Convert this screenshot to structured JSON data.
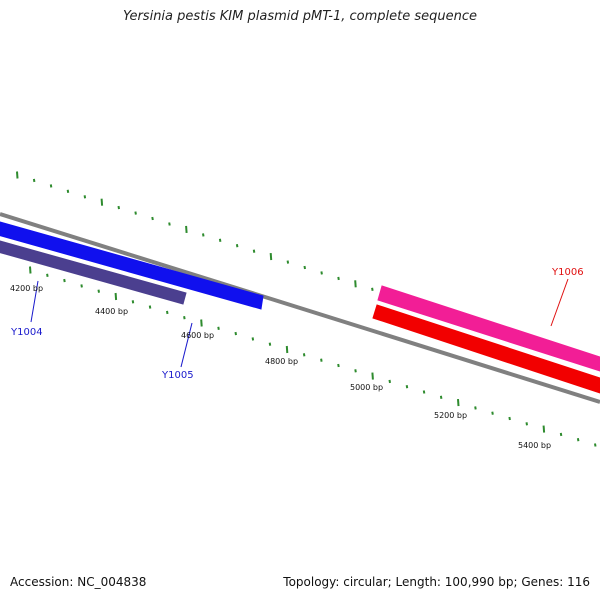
{
  "title": "Yersinia pestis KIM plasmid pMT-1, complete sequence",
  "footer": {
    "accession": "Accession: NC_004838",
    "summary": "Topology: circular; Length: 100,990 bp; Genes: 116"
  },
  "colors": {
    "backbone": "#808080",
    "ticks": "#2e8b2e",
    "Y1004": "#4b3f8f",
    "Y1005": "#1010ee",
    "Y1006_forward": "#f21e96",
    "Y1006_reverse": "#f20000",
    "label_blue": "#1a1acc",
    "label_red": "#e01010"
  },
  "scale_labels": [
    "4200 bp",
    "4400 bp",
    "4600 bp",
    "4800 bp",
    "5000 bp",
    "5200 bp",
    "5400 bp"
  ],
  "genes": [
    {
      "name": "Y1004",
      "color_key": "Y1004",
      "label_color_key": "label_blue"
    },
    {
      "name": "Y1005",
      "color_key": "Y1005",
      "label_color_key": "label_blue"
    },
    {
      "name": "Y1006",
      "color_key": "Y1006_forward",
      "label_color_key": "label_red"
    },
    {
      "name": "",
      "color_key": "Y1006_reverse",
      "label_color_key": "label_red"
    }
  ]
}
